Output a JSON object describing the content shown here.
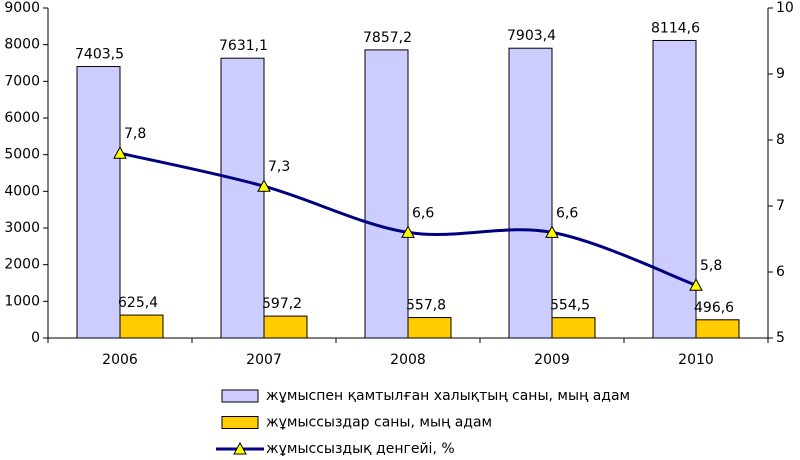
{
  "chart_data": {
    "type": "bar-line",
    "categories": [
      "2006",
      "2007",
      "2008",
      "2009",
      "2010"
    ],
    "series": [
      {
        "name": "жұмыспен қамтылған халықтың саны, мың адам",
        "type": "bar",
        "color": "#ccccff",
        "axis": "y",
        "values": [
          7403.5,
          7631.1,
          7857.2,
          7903.4,
          8114.6
        ],
        "value_labels": [
          "7403,5",
          "7631,1",
          "7857,2",
          "7903,4",
          "8114,6"
        ]
      },
      {
        "name": "жұмыссыздар саны, мың адам",
        "type": "bar",
        "color": "#ffcc00",
        "axis": "y",
        "values": [
          625.4,
          597.2,
          557.8,
          554.5,
          496.6
        ],
        "value_labels": [
          "625,4",
          "597,2",
          "557,8",
          "554,5",
          "496,6"
        ]
      },
      {
        "name": "жұмыссыздық денгейі, %",
        "type": "line",
        "color": "#000080",
        "marker_color": "#ffff00",
        "axis": "y2",
        "values": [
          7.8,
          7.3,
          6.6,
          6.6,
          5.8
        ],
        "value_labels": [
          "7,8",
          "7,3",
          "6,6",
          "6,6",
          "5,8"
        ]
      }
    ],
    "ylim": [
      0,
      9000
    ],
    "yticks": [
      0,
      1000,
      2000,
      3000,
      4000,
      5000,
      6000,
      7000,
      8000,
      9000
    ],
    "y2lim": [
      5,
      10
    ],
    "y2ticks": [
      5,
      6,
      7,
      8,
      9,
      10
    ],
    "legend": "bottom"
  }
}
